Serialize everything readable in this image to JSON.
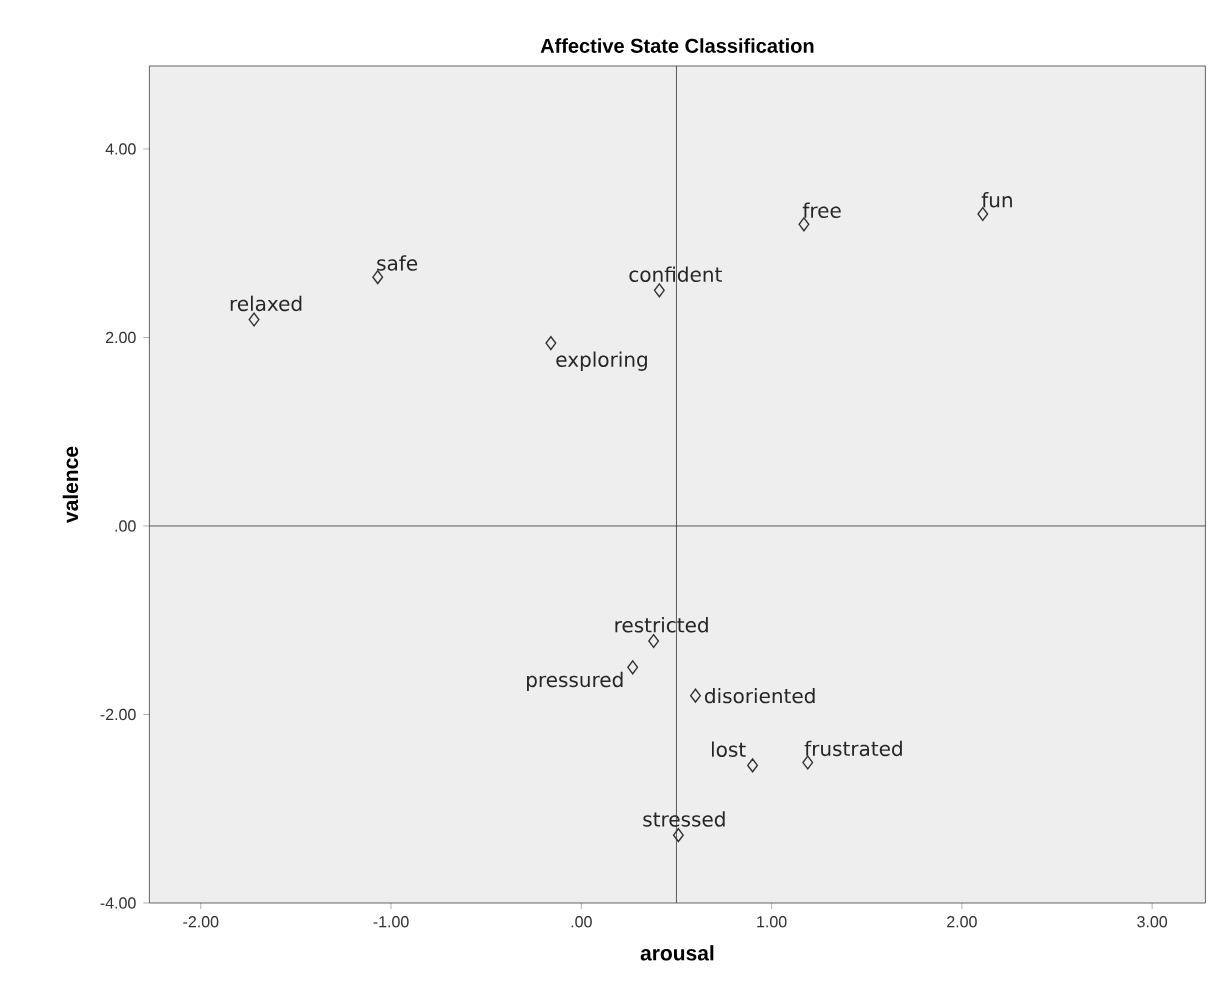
{
  "chart_data": {
    "type": "scatter",
    "title": "Affective State Classification",
    "xlabel": "arousal",
    "ylabel": "valence",
    "x": [
      -1.72,
      -1.07,
      -0.16,
      0.41,
      1.17,
      2.11,
      0.38,
      0.27,
      0.6,
      0.9,
      1.19,
      0.51
    ],
    "values": [
      2.19,
      2.64,
      1.94,
      2.5,
      3.2,
      3.31,
      -1.22,
      -1.5,
      -1.8,
      -2.54,
      -2.51,
      -3.28
    ],
    "color": "#333333",
    "marker": "diamond",
    "grid": false,
    "xlim": [
      -2.27,
      3.28
    ],
    "ylim": [
      -4.0,
      4.88
    ],
    "xticks": [
      {
        "value": -2,
        "label": "-2.00"
      },
      {
        "value": -1,
        "label": "-1.00"
      },
      {
        "value": 0,
        "label": ".00"
      },
      {
        "value": 1,
        "label": "1.00"
      },
      {
        "value": 2,
        "label": "2.00"
      },
      {
        "value": 3,
        "label": "3.00"
      }
    ],
    "yticks": [
      {
        "value": -4,
        "label": "-4.00"
      },
      {
        "value": -2,
        "label": "-2.00"
      },
      {
        "value": 0,
        "label": ".00"
      },
      {
        "value": 2,
        "label": "2.00"
      },
      {
        "value": 4,
        "label": "4.00"
      }
    ],
    "ref_lines": [
      {
        "axis": "x",
        "value": 0.5
      },
      {
        "axis": "y",
        "value": 0
      }
    ],
    "annotations": [
      {
        "text": "relaxed",
        "x": -1.72,
        "y": 2.19
      },
      {
        "text": "safe",
        "x": -1.07,
        "y": 2.64
      },
      {
        "text": "exploring",
        "x": -0.16,
        "y": 1.94
      },
      {
        "text": "confident",
        "x": 0.41,
        "y": 2.5
      },
      {
        "text": "free",
        "x": 1.17,
        "y": 3.2
      },
      {
        "text": "fun",
        "x": 2.11,
        "y": 3.31
      },
      {
        "text": "restricted",
        "x": 0.38,
        "y": -1.22
      },
      {
        "text": "pressured",
        "x": 0.27,
        "y": -1.5
      },
      {
        "text": "disoriented",
        "x": 0.6,
        "y": -1.8
      },
      {
        "text": "lost",
        "x": 0.9,
        "y": -2.54
      },
      {
        "text": "frustrated",
        "x": 1.19,
        "y": -2.51
      },
      {
        "text": "stressed",
        "x": 0.51,
        "y": -3.28
      }
    ]
  }
}
